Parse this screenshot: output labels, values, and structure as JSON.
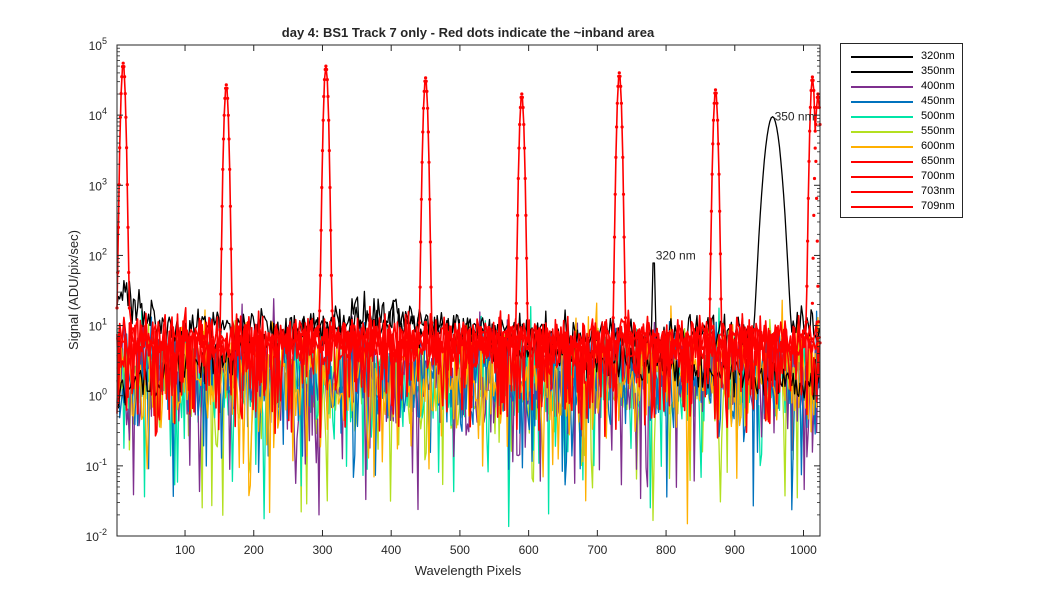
{
  "chart_data": {
    "type": "line",
    "title": "day 4: BS1   Track 7 only - Red dots indicate the ~inband area",
    "xlabel": "Wavelength Pixels",
    "ylabel": "Signal (ADU/pix/sec)",
    "xlim": [
      1,
      1024
    ],
    "ylim": [
      0.01,
      100000
    ],
    "yscale": "log",
    "xticks": [
      100,
      200,
      300,
      400,
      500,
      600,
      700,
      800,
      900,
      1000
    ],
    "xtick_labels": [
      "100",
      "200",
      "300",
      "400",
      "500",
      "600",
      "700",
      "800",
      "900",
      "1000"
    ],
    "yticks": [
      0.01,
      0.1,
      1,
      10,
      100,
      1000,
      10000,
      100000
    ],
    "ytick_labels": [
      {
        "base": "10",
        "exp": "-2"
      },
      {
        "base": "10",
        "exp": "-1"
      },
      {
        "base": "10",
        "exp": "0"
      },
      {
        "base": "10",
        "exp": "1"
      },
      {
        "base": "10",
        "exp": "2"
      },
      {
        "base": "10",
        "exp": "3"
      },
      {
        "base": "10",
        "exp": "4"
      },
      {
        "base": "10",
        "exp": "5"
      }
    ],
    "grid": false,
    "legend_position": "outside-top-right",
    "series": [
      {
        "name": "320nm",
        "color": "#000000",
        "peak_x": 782,
        "peak_y": 100,
        "peak_width": 2,
        "baseline": [
          [
            1,
            1.2
          ],
          [
            200,
            5
          ],
          [
            350,
            15
          ],
          [
            500,
            9
          ],
          [
            650,
            4
          ],
          [
            800,
            2.5
          ],
          [
            950,
            1.8
          ],
          [
            1024,
            1.5
          ]
        ]
      },
      {
        "name": "350nm",
        "color": "#000000",
        "peak_x": 955,
        "peak_y": 9500,
        "peak_width": 10,
        "baseline": [
          [
            1,
            30
          ],
          [
            30,
            20
          ],
          [
            60,
            10
          ],
          [
            200,
            9
          ],
          [
            400,
            11
          ],
          [
            600,
            8
          ],
          [
            800,
            7
          ],
          [
            900,
            9
          ],
          [
            1024,
            10
          ]
        ]
      },
      {
        "name": "400nm",
        "color": "#7E2F8E",
        "baseline": [
          [
            1,
            2
          ],
          [
            1024,
            2
          ]
        ]
      },
      {
        "name": "450nm",
        "color": "#0072BD",
        "baseline": [
          [
            1,
            2
          ],
          [
            1024,
            2
          ]
        ]
      },
      {
        "name": "500nm",
        "color": "#00E5A8",
        "baseline": [
          [
            1,
            2
          ],
          [
            1024,
            2
          ]
        ]
      },
      {
        "name": "550nm",
        "color": "#B3E020",
        "baseline": [
          [
            1,
            1.5
          ],
          [
            1024,
            1.5
          ]
        ]
      },
      {
        "name": "600nm",
        "color": "#FFB000",
        "baseline": [
          [
            1,
            2
          ],
          [
            1024,
            2
          ]
        ]
      },
      {
        "name": "650nm",
        "color": "#FF0000",
        "peak_x": 10,
        "peak_y": 55000,
        "peak_width": 3,
        "baseline": [
          [
            1,
            6
          ],
          [
            1024,
            6
          ]
        ]
      },
      {
        "name": "700nm",
        "color": "#FF0000",
        "peak_x": 160,
        "peak_y": 27000,
        "peak_width": 3,
        "baseline": [
          [
            1,
            6
          ],
          [
            1024,
            6
          ]
        ]
      },
      {
        "name": "703nm",
        "color": "#FF0000",
        "peak_x": 305,
        "peak_y": 50000,
        "peak_width": 3,
        "baseline": [
          [
            1,
            6
          ],
          [
            1024,
            6
          ]
        ]
      },
      {
        "name": "709nm",
        "color": "#FF0000",
        "peak_x": 450,
        "peak_y": 34000,
        "peak_width": 3,
        "baseline": [
          [
            1,
            6
          ],
          [
            1024,
            6
          ]
        ]
      }
    ],
    "extra_red_peaks": [
      {
        "x": 590,
        "y": 20000,
        "width": 3
      },
      {
        "x": 732,
        "y": 40000,
        "width": 3
      },
      {
        "x": 872,
        "y": 23000,
        "width": 3
      },
      {
        "x": 1013,
        "y": 35000,
        "width": 3
      },
      {
        "x": 1021,
        "y": 20000,
        "width": 3
      }
    ],
    "annotations": [
      {
        "text": "320 nm",
        "x": 782,
        "y": 100
      },
      {
        "text": "350 nm",
        "x": 955,
        "y": 9500
      }
    ]
  }
}
